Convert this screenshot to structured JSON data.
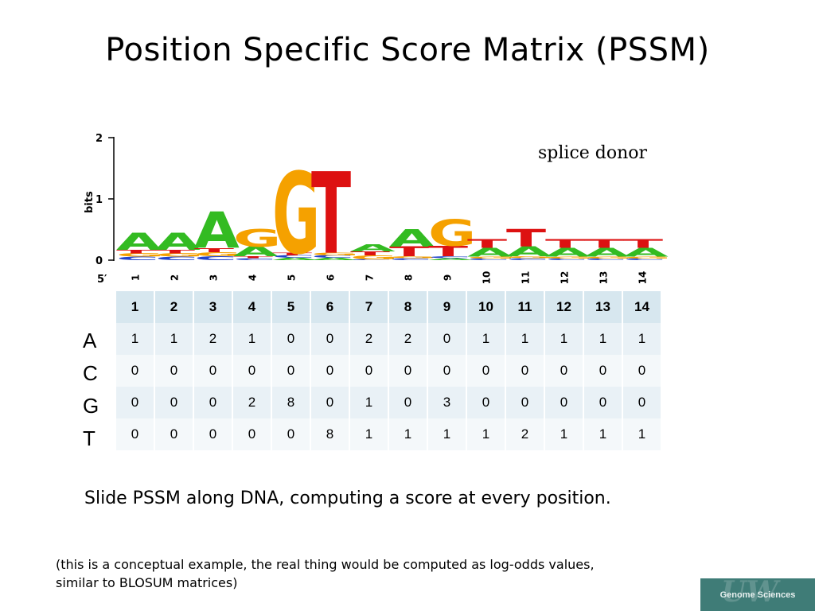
{
  "slide": {
    "title": "Position Specific Score Matrix (PSSM)",
    "logo_caption": "splice donor",
    "body_text": "Slide PSSM along DNA, computing a score at every position.",
    "footnote_line1": "(this is a conceptual example, the real thing would be computed as log-odds values,",
    "footnote_line2": "similar to BLOSUM matrices)"
  },
  "sequence_logo": {
    "y_label": "bits",
    "y_ticks": [
      "0",
      "1",
      "2"
    ],
    "x_ticks": [
      "1",
      "2",
      "3",
      "4",
      "5",
      "6",
      "7",
      "8",
      "9",
      "10",
      "11",
      "12",
      "13",
      "14"
    ],
    "five_prime_label": "5′",
    "letter_colors": {
      "A": "#33bb22",
      "C": "#2244cc",
      "G": "#f5a100",
      "T": "#dd1111"
    }
  },
  "pssm": {
    "columns": [
      "1",
      "2",
      "3",
      "4",
      "5",
      "6",
      "7",
      "8",
      "9",
      "10",
      "11",
      "12",
      "13",
      "14"
    ],
    "rows": [
      {
        "base": "A",
        "values": [
          "1",
          "1",
          "2",
          "1",
          "0",
          "0",
          "2",
          "2",
          "0",
          "1",
          "1",
          "1",
          "1",
          "1"
        ]
      },
      {
        "base": "C",
        "values": [
          "0",
          "0",
          "0",
          "0",
          "0",
          "0",
          "0",
          "0",
          "0",
          "0",
          "0",
          "0",
          "0",
          "0"
        ]
      },
      {
        "base": "G",
        "values": [
          "0",
          "0",
          "0",
          "2",
          "8",
          "0",
          "1",
          "0",
          "3",
          "0",
          "0",
          "0",
          "0",
          "0"
        ]
      },
      {
        "base": "T",
        "values": [
          "0",
          "0",
          "0",
          "0",
          "0",
          "8",
          "1",
          "1",
          "1",
          "1",
          "2",
          "1",
          "1",
          "1"
        ]
      }
    ]
  },
  "footer": {
    "badge_text": "Genome Sciences",
    "badge_mark": "UW",
    "badge_color": "#3f7c77"
  }
}
